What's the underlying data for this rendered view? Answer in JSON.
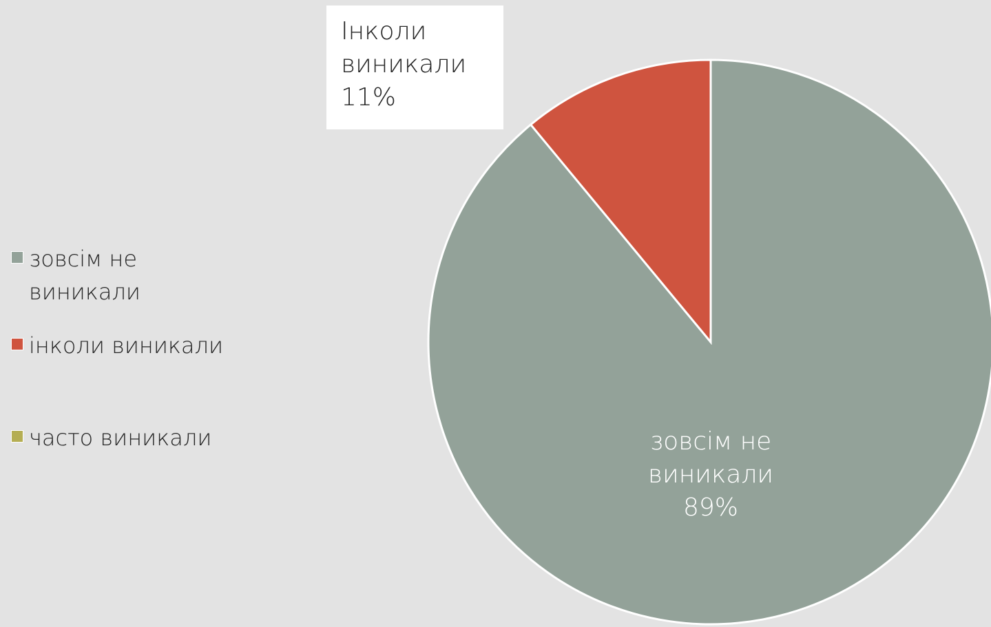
{
  "chart_data": {
    "type": "pie",
    "categories": [
      "зовсім не виникали",
      "інколи виникали",
      "часто виникали"
    ],
    "values": [
      89,
      11,
      0
    ],
    "value_labels": [
      "89%",
      "11%",
      null
    ],
    "label_names": [
      "зовсім не виникали",
      "Інколи виникали",
      null
    ],
    "colors": [
      "#93a299",
      "#cf543f",
      "#b5ae53"
    ],
    "legend": "left"
  }
}
